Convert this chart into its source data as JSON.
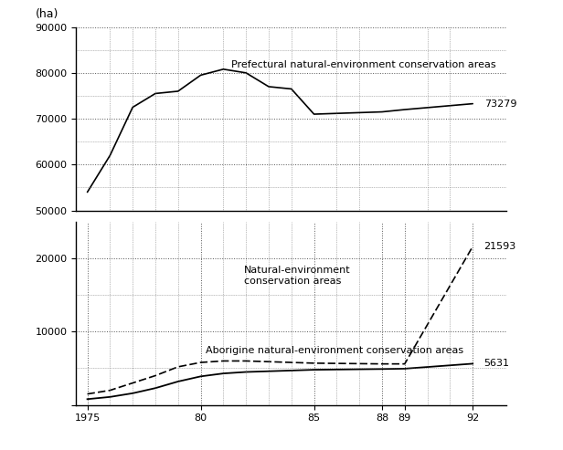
{
  "upper_x": [
    1975,
    1976,
    1977,
    1978,
    1979,
    1980,
    1981,
    1982,
    1983,
    1984,
    1985,
    1988,
    1989,
    1992
  ],
  "upper_y": [
    54000,
    62000,
    72500,
    75500,
    76000,
    79500,
    80800,
    80000,
    77000,
    76500,
    71000,
    71500,
    72000,
    73279
  ],
  "upper_ylim": [
    50000,
    90000
  ],
  "upper_yticks": [
    50000,
    60000,
    70000,
    80000,
    90000
  ],
  "upper_label": "Prefectural natural-environment conservation areas",
  "upper_end_value": "73279",
  "lower_x_nat": [
    1975,
    1976,
    1977,
    1978,
    1979,
    1980,
    1981,
    1982,
    1983,
    1984,
    1985,
    1988,
    1989,
    1992
  ],
  "lower_y_nat": [
    1500,
    2000,
    3000,
    4000,
    5200,
    5800,
    6000,
    6000,
    5900,
    5800,
    5700,
    5600,
    5600,
    21593
  ],
  "lower_x_abor": [
    1975,
    1976,
    1977,
    1978,
    1979,
    1980,
    1981,
    1982,
    1983,
    1984,
    1985,
    1988,
    1989,
    1992
  ],
  "lower_y_abor": [
    800,
    1100,
    1600,
    2300,
    3200,
    3900,
    4300,
    4500,
    4600,
    4700,
    4800,
    4900,
    4950,
    5631
  ],
  "lower_ylim": [
    0,
    25000
  ],
  "lower_yticks": [
    0,
    10000,
    20000
  ],
  "lower_extra_gridlines": [
    5000,
    15000
  ],
  "lower_label_nat": "Natural-environment\nconservation areas",
  "lower_label_abor": "Aborigine natural-environment conservation areas",
  "lower_end_nat": "21593",
  "lower_end_abor": "5631",
  "xticks": [
    1975,
    1980,
    1985,
    1988,
    1989,
    1992
  ],
  "xticklabels": [
    "1975",
    "80",
    "85",
    "88",
    "89",
    "92"
  ],
  "xlim": [
    1974.5,
    1993.5
  ],
  "ylabel": "(ha)",
  "background_color": "#ffffff",
  "line_color": "#000000",
  "grid_color": "#555555",
  "fontsize_label": 8,
  "fontsize_annot": 8,
  "fontsize_ylabel": 9
}
